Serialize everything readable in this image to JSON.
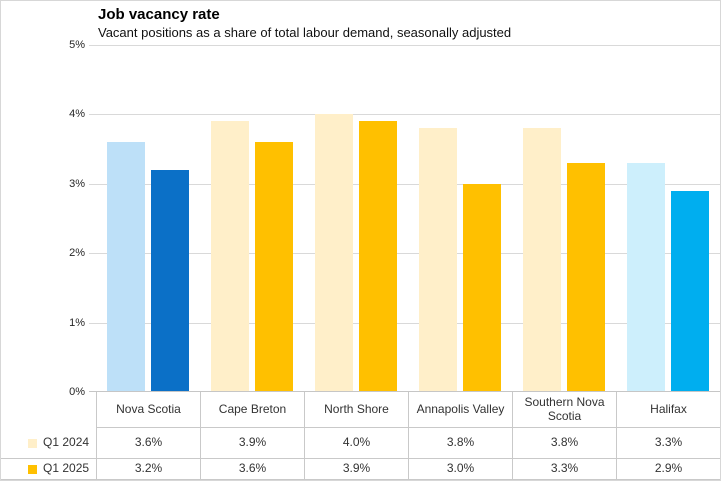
{
  "header": {
    "title": "Job vacancy rate",
    "subtitle": "Vacant positions as a share of total labour demand, seasonally adjusted"
  },
  "chart_data": {
    "type": "bar",
    "title": "Job vacancy rate",
    "subtitle": "Vacant positions as a share of total labour demand, seasonally adjusted",
    "categories": [
      "Nova Scotia",
      "Cape Breton",
      "North Shore",
      "Annapolis Valley",
      "Southern Nova Scotia",
      "Halifax"
    ],
    "series": [
      {
        "name": "Q1 2024",
        "values": [
          3.6,
          3.9,
          4.0,
          3.8,
          3.8,
          3.3
        ],
        "labels": [
          "3.6%",
          "3.9%",
          "4.0%",
          "3.8%",
          "3.8%",
          "3.3%"
        ]
      },
      {
        "name": "Q1 2025",
        "values": [
          3.2,
          3.6,
          3.9,
          3.0,
          3.3,
          2.9
        ],
        "labels": [
          "3.2%",
          "3.6%",
          "3.9%",
          "3.0%",
          "3.3%",
          "2.9%"
        ]
      }
    ],
    "ylim": [
      0,
      5
    ],
    "ytick_labels": [
      "0%",
      "1%",
      "2%",
      "3%",
      "4%",
      "5%"
    ],
    "grid": true,
    "legend_position": "data-table-left",
    "bar_colors": [
      [
        "#BDE0F8",
        "#0B70C7"
      ],
      [
        "#FFEFC9",
        "#FFC000"
      ],
      [
        "#FFEFC9",
        "#FFC000"
      ],
      [
        "#FFEFC9",
        "#FFC000"
      ],
      [
        "#FFEFC9",
        "#FFC000"
      ],
      [
        "#CDEFFC",
        "#00AEEF"
      ]
    ],
    "legend_colors": [
      "#FFEFC9",
      "#FFC000"
    ],
    "gridline_color": "#D9D9D9",
    "table_line_color": "#C9C9C9"
  }
}
